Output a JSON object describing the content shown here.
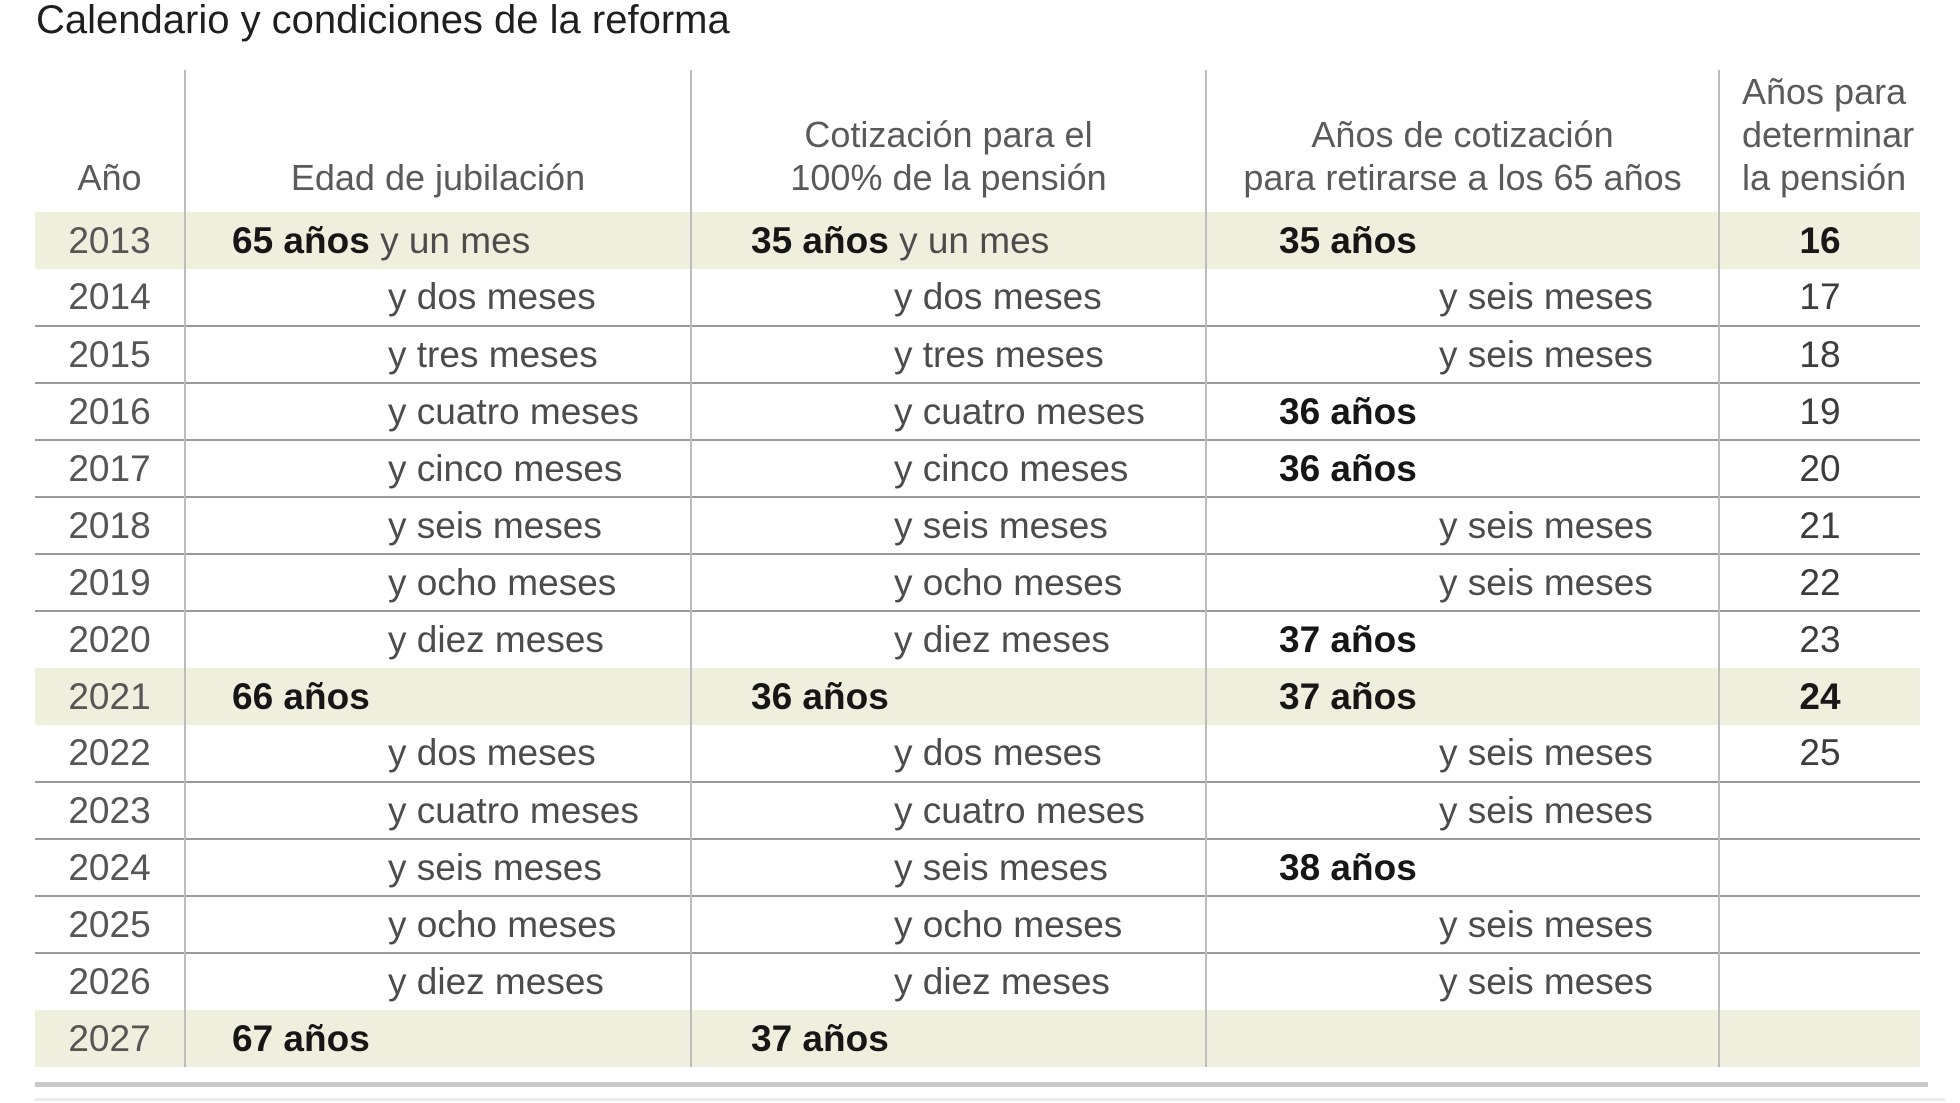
{
  "title": "Calendario y condiciones de la reforma",
  "colors": {
    "highlight_row": "#eef0dd",
    "row_separator": "#9a9a9a",
    "column_divider": "#bdbdbd",
    "bottom_rule": "#c9c9c9",
    "bold_text": "#161616",
    "body_text": "#4c4c4c",
    "header_text": "#5a5a5a"
  },
  "table": {
    "headers": [
      {
        "key": "ano",
        "label": "Año"
      },
      {
        "key": "edad",
        "label": "Edad de jubilación"
      },
      {
        "key": "cotizacion",
        "label": "Cotización para el\n100% de la pensión"
      },
      {
        "key": "anos65",
        "label": "Años de cotización\npara retirarse a los 65 años"
      },
      {
        "key": "determinar",
        "label": "Años para\ndeterminar\nla pensión"
      }
    ],
    "rows": [
      {
        "year": "2013",
        "edad": {
          "b": "65 años",
          "t": " y un mes"
        },
        "cot": {
          "b": "35 años",
          "t": " y un mes"
        },
        "a65": {
          "b": "35 años",
          "t": ""
        },
        "det": "16",
        "hl": true
      },
      {
        "year": "2014",
        "edad": {
          "b": "",
          "t": "y dos meses"
        },
        "cot": {
          "b": "",
          "t": "y dos meses"
        },
        "a65": {
          "b": "",
          "t": "y seis meses"
        },
        "det": "17",
        "hl": false
      },
      {
        "year": "2015",
        "edad": {
          "b": "",
          "t": "y tres meses"
        },
        "cot": {
          "b": "",
          "t": "y tres meses"
        },
        "a65": {
          "b": "",
          "t": "y seis meses"
        },
        "det": "18",
        "hl": false
      },
      {
        "year": "2016",
        "edad": {
          "b": "",
          "t": "y cuatro meses"
        },
        "cot": {
          "b": "",
          "t": "y cuatro meses"
        },
        "a65": {
          "b": "36 años",
          "t": ""
        },
        "det": "19",
        "hl": false
      },
      {
        "year": "2017",
        "edad": {
          "b": "",
          "t": "y cinco meses"
        },
        "cot": {
          "b": "",
          "t": "y cinco meses"
        },
        "a65": {
          "b": "36 años",
          "t": ""
        },
        "det": "20",
        "hl": false
      },
      {
        "year": "2018",
        "edad": {
          "b": "",
          "t": "y seis meses"
        },
        "cot": {
          "b": "",
          "t": "y seis meses"
        },
        "a65": {
          "b": "",
          "t": "y seis meses"
        },
        "det": "21",
        "hl": false
      },
      {
        "year": "2019",
        "edad": {
          "b": "",
          "t": "y ocho meses"
        },
        "cot": {
          "b": "",
          "t": "y ocho meses"
        },
        "a65": {
          "b": "",
          "t": "y seis meses"
        },
        "det": "22",
        "hl": false
      },
      {
        "year": "2020",
        "edad": {
          "b": "",
          "t": "y diez meses"
        },
        "cot": {
          "b": "",
          "t": "y diez meses"
        },
        "a65": {
          "b": "37 años",
          "t": ""
        },
        "det": "23",
        "hl": false
      },
      {
        "year": "2021",
        "edad": {
          "b": "66 años",
          "t": ""
        },
        "cot": {
          "b": "36 años",
          "t": ""
        },
        "a65": {
          "b": "37 años",
          "t": ""
        },
        "det": "24",
        "hl": true
      },
      {
        "year": "2022",
        "edad": {
          "b": "",
          "t": "y dos meses"
        },
        "cot": {
          "b": "",
          "t": "y dos meses"
        },
        "a65": {
          "b": "",
          "t": "y seis meses"
        },
        "det": "25",
        "hl": false
      },
      {
        "year": "2023",
        "edad": {
          "b": "",
          "t": "y cuatro meses"
        },
        "cot": {
          "b": "",
          "t": "y cuatro meses"
        },
        "a65": {
          "b": "",
          "t": "y seis meses"
        },
        "det": "",
        "hl": false
      },
      {
        "year": "2024",
        "edad": {
          "b": "",
          "t": "y seis meses"
        },
        "cot": {
          "b": "",
          "t": "y seis meses"
        },
        "a65": {
          "b": "38 años",
          "t": ""
        },
        "det": "",
        "hl": false
      },
      {
        "year": "2025",
        "edad": {
          "b": "",
          "t": "y ocho meses"
        },
        "cot": {
          "b": "",
          "t": "y ocho meses"
        },
        "a65": {
          "b": "",
          "t": "y seis meses"
        },
        "det": "",
        "hl": false
      },
      {
        "year": "2026",
        "edad": {
          "b": "",
          "t": "y diez meses"
        },
        "cot": {
          "b": "",
          "t": "y diez meses"
        },
        "a65": {
          "b": "",
          "t": "y seis meses"
        },
        "det": "",
        "hl": false
      },
      {
        "year": "2027",
        "edad": {
          "b": "67 años",
          "t": ""
        },
        "cot": {
          "b": "37 años",
          "t": ""
        },
        "a65": {
          "b": "",
          "t": ""
        },
        "det": "",
        "hl": true
      }
    ]
  },
  "chart_data": {
    "type": "table",
    "title": "Calendario y condiciones de la reforma",
    "columns": [
      "Año",
      "Edad de jubilación",
      "Cotización para el 100% de la pensión",
      "Años de cotización para retirarse a los 65 años",
      "Años para determinar la pensión"
    ],
    "rows": [
      [
        "2013",
        "65 años y un mes",
        "35 años y un mes",
        "35 años",
        "16"
      ],
      [
        "2014",
        "y dos meses",
        "y dos meses",
        "y seis meses",
        "17"
      ],
      [
        "2015",
        "y tres meses",
        "y tres meses",
        "y seis meses",
        "18"
      ],
      [
        "2016",
        "y cuatro meses",
        "y cuatro meses",
        "36 años",
        "19"
      ],
      [
        "2017",
        "y cinco meses",
        "y cinco meses",
        "36 años",
        "20"
      ],
      [
        "2018",
        "y seis meses",
        "y seis meses",
        "y seis meses",
        "21"
      ],
      [
        "2019",
        "y ocho meses",
        "y ocho meses",
        "y seis meses",
        "22"
      ],
      [
        "2020",
        "y diez meses",
        "y diez meses",
        "37 años",
        "23"
      ],
      [
        "2021",
        "66 años",
        "36 años",
        "37 años",
        "24"
      ],
      [
        "2022",
        "y dos meses",
        "y dos meses",
        "y seis meses",
        "25"
      ],
      [
        "2023",
        "y cuatro meses",
        "y cuatro meses",
        "y seis meses",
        ""
      ],
      [
        "2024",
        "y seis meses",
        "y seis meses",
        "38 años",
        ""
      ],
      [
        "2025",
        "y ocho meses",
        "y ocho meses",
        "y seis meses",
        ""
      ],
      [
        "2026",
        "y diez meses",
        "y diez meses",
        "y seis meses",
        ""
      ],
      [
        "2027",
        "67 años",
        "37 años",
        "",
        ""
      ]
    ],
    "highlighted_rows": [
      "2013",
      "2021",
      "2027"
    ],
    "layout": {
      "grid": "horizontal-separators",
      "legend": "none"
    }
  }
}
